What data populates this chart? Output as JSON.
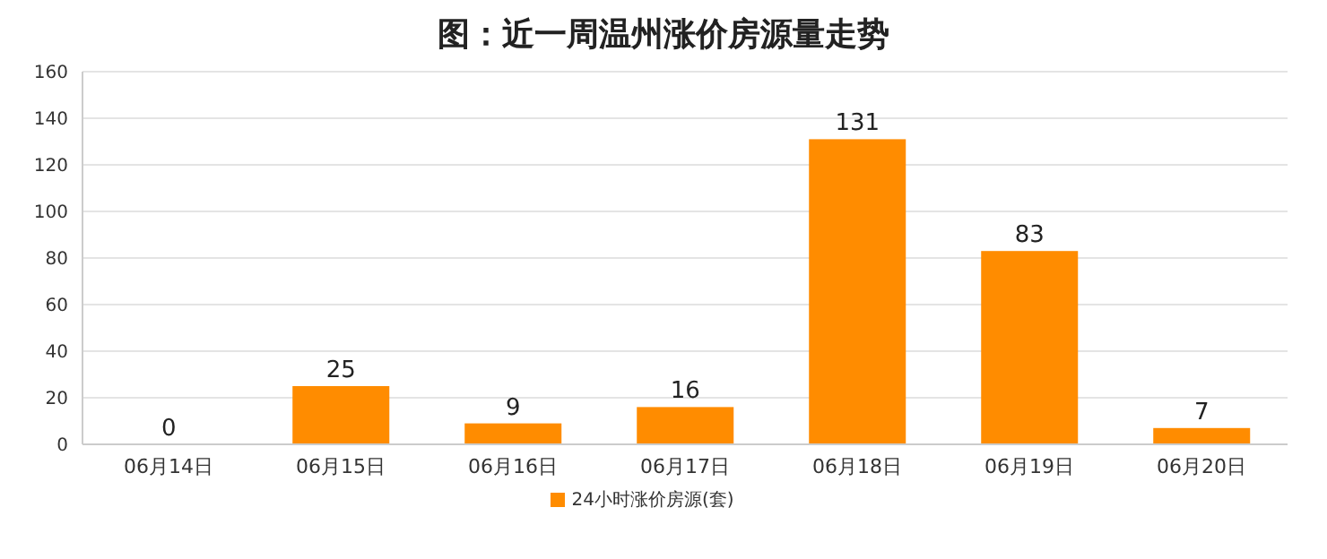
{
  "chart_data": {
    "type": "bar",
    "title": "图：近一周温州涨价房源量走势",
    "categories": [
      "06月14日",
      "06月15日",
      "06月16日",
      "06月17日",
      "06月18日",
      "06月19日",
      "06月20日"
    ],
    "series": [
      {
        "name": "24小时涨价房源(套)",
        "color": "#ff8c00",
        "values": [
          0,
          25,
          9,
          16,
          131,
          83,
          7
        ]
      }
    ],
    "ylim": [
      0,
      160
    ],
    "yticks": [
      0,
      20,
      40,
      60,
      80,
      100,
      120,
      140,
      160
    ],
    "grid": "y",
    "legend": "bottom",
    "data_labels": true
  }
}
